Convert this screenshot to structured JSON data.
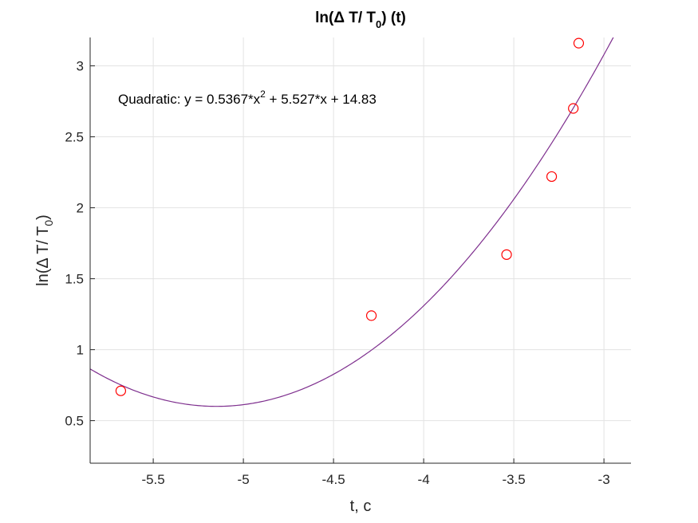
{
  "chart_data": {
    "type": "scatter",
    "title": {
      "main": "ln(Δ T/ T",
      "sub": "0",
      "tail": ") (t)"
    },
    "xlabel": "t, c",
    "ylabel": {
      "main": "ln(Δ T/ T",
      "sub": "0",
      "tail": ")"
    },
    "xlim": [
      -5.85,
      -2.85
    ],
    "ylim": [
      0.2,
      3.2
    ],
    "xticks": [
      -5.5,
      -5,
      -4.5,
      -4,
      -3.5,
      -3
    ],
    "xtick_labels": [
      "-5.5",
      "-5",
      "-4.5",
      "-4",
      "-3.5",
      "-3"
    ],
    "yticks": [
      0.5,
      1,
      1.5,
      2,
      2.5,
      3
    ],
    "ytick_labels": [
      "0.5",
      "1",
      "1.5",
      "2",
      "2.5",
      "3"
    ],
    "grid": true,
    "series": [
      {
        "kind": "points",
        "color": "#ff0000",
        "marker": "circle",
        "x": [
          -5.68,
          -4.29,
          -3.54,
          -3.29,
          -3.17,
          -3.14
        ],
        "y": [
          0.71,
          1.24,
          1.67,
          2.22,
          2.7,
          3.16
        ]
      },
      {
        "kind": "fit",
        "color": "#7e2f8e",
        "coefficients": [
          0.5367,
          5.527,
          14.83
        ]
      }
    ],
    "annotation": {
      "prefix": "Quadratic:  y = 0.5367*x",
      "sup": "2",
      "suffix": " + 5.527*x + 14.83"
    }
  }
}
